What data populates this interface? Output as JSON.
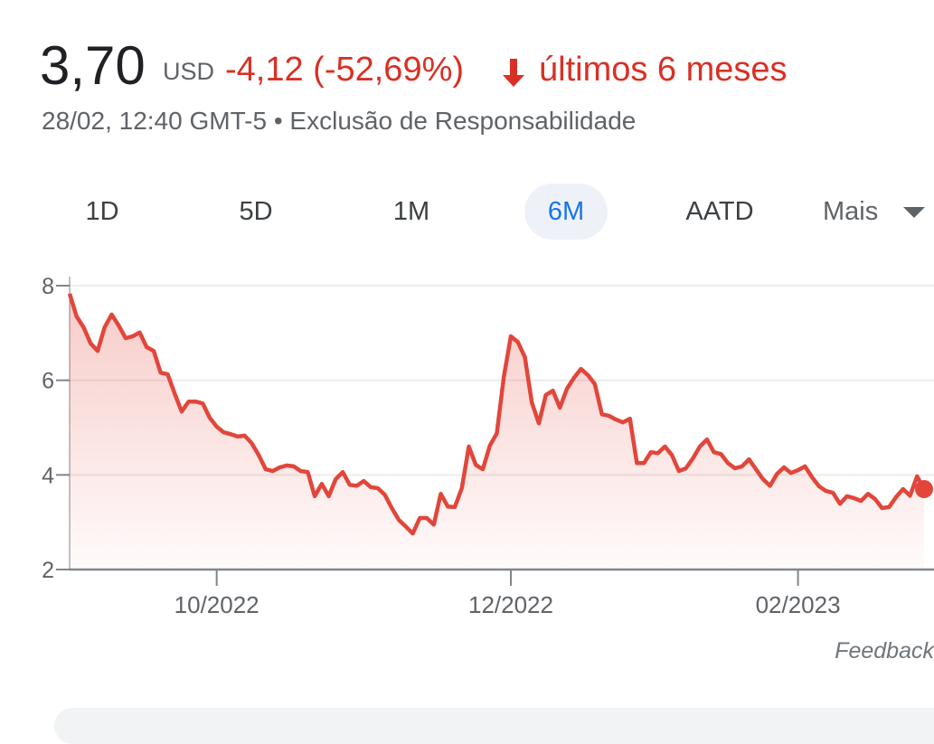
{
  "header": {
    "price": "3,70",
    "currency": "USD",
    "change": "-4,12 (-52,69%)",
    "period": "últimos 6 meses",
    "timestamp": "28/02, 12:40 GMT-5",
    "separator": "•",
    "disclaimer": "Exclusão de Responsabilidade"
  },
  "ranges": {
    "options": [
      "1D",
      "5D",
      "1M",
      "6M",
      "AATD"
    ],
    "selected": 3,
    "more": "Mais"
  },
  "chart_data": {
    "type": "line",
    "categories": [
      null,
      null,
      null,
      null,
      null,
      null,
      null,
      null,
      null,
      null,
      null,
      null,
      null,
      null,
      null,
      null,
      null,
      null,
      null,
      null,
      null,
      "10/2022",
      null,
      null,
      null,
      null,
      null,
      null,
      null,
      null,
      null,
      null,
      null,
      null,
      null,
      null,
      null,
      null,
      null,
      null,
      null,
      null,
      null,
      null,
      null,
      null,
      null,
      null,
      null,
      null,
      null,
      null,
      null,
      null,
      null,
      null,
      null,
      null,
      null,
      null,
      null,
      null,
      null,
      "12/2022",
      null,
      null,
      null,
      null,
      null,
      null,
      null,
      null,
      null,
      null,
      null,
      null,
      null,
      null,
      null,
      null,
      null,
      null,
      null,
      null,
      null,
      null,
      null,
      null,
      null,
      null,
      null,
      null,
      null,
      null,
      null,
      null,
      null,
      null,
      null,
      null,
      null,
      null,
      null,
      null,
      "02/2023",
      null,
      null,
      null,
      null,
      null,
      null,
      null,
      null,
      null,
      null,
      null,
      null,
      null,
      null,
      null,
      null,
      null,
      null
    ],
    "values": [
      7.83,
      7.35,
      7.12,
      6.78,
      6.62,
      7.12,
      7.39,
      7.16,
      6.89,
      6.93,
      7.01,
      6.7,
      6.62,
      6.16,
      6.13,
      5.72,
      5.34,
      5.55,
      5.55,
      5.51,
      5.21,
      5.02,
      4.9,
      4.86,
      4.81,
      4.83,
      4.67,
      4.42,
      4.12,
      4.08,
      4.16,
      4.2,
      4.18,
      4.08,
      4.06,
      3.55,
      3.81,
      3.55,
      3.91,
      4.06,
      3.79,
      3.77,
      3.87,
      3.74,
      3.72,
      3.58,
      3.3,
      3.05,
      2.91,
      2.76,
      3.09,
      3.09,
      2.95,
      3.6,
      3.33,
      3.32,
      3.72,
      4.6,
      4.21,
      4.12,
      4.62,
      4.88,
      6.07,
      6.93,
      6.81,
      6.49,
      5.53,
      5.09,
      5.69,
      5.78,
      5.42,
      5.82,
      6.05,
      6.24,
      6.11,
      5.92,
      5.28,
      5.25,
      5.17,
      5.11,
      5.19,
      4.25,
      4.25,
      4.48,
      4.46,
      4.6,
      4.42,
      4.08,
      4.14,
      4.35,
      4.6,
      4.75,
      4.48,
      4.44,
      4.25,
      4.14,
      4.18,
      4.33,
      4.12,
      3.91,
      3.77,
      4.02,
      4.16,
      4.04,
      4.1,
      4.18,
      3.95,
      3.76,
      3.66,
      3.62,
      3.39,
      3.55,
      3.51,
      3.45,
      3.6,
      3.49,
      3.3,
      3.32,
      3.53,
      3.7,
      3.56,
      3.97,
      3.7
    ],
    "color": "#e2463b",
    "ylim": [
      2,
      8
    ],
    "yticks": [
      2,
      4,
      6,
      8
    ],
    "grid": true
  },
  "footer": {
    "feedback": "Feedback"
  }
}
